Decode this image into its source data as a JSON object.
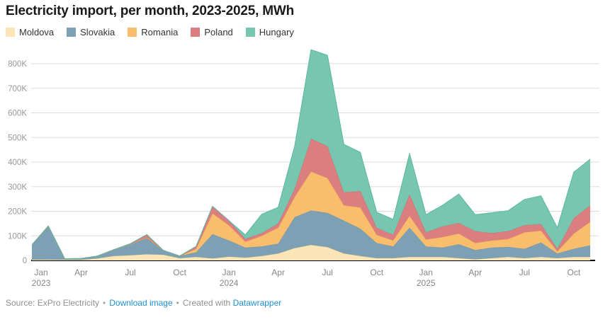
{
  "chart_data": {
    "type": "area",
    "stacked": true,
    "title": "Electricity import, per month, 2023-2025, MWh",
    "xlabel": "",
    "ylabel": "MWh",
    "grid": true,
    "legend_position": "top-left",
    "ylim": [
      0,
      860000
    ],
    "y_ticks": [
      0,
      100000,
      200000,
      300000,
      400000,
      500000,
      600000,
      700000,
      800000
    ],
    "y_tick_labels": [
      "0",
      "100K",
      "200K",
      "300K",
      "400K",
      "500K",
      "600K",
      "700K",
      "800K"
    ],
    "x": [
      "Jan 2023",
      "Feb 2023",
      "Mar 2023",
      "Apr 2023",
      "May 2023",
      "Jun 2023",
      "Jul 2023",
      "Aug 2023",
      "Sep 2023",
      "Oct 2023",
      "Nov 2023",
      "Dec 2023",
      "Jan 2024",
      "Feb 2024",
      "Mar 2024",
      "Apr 2024",
      "May 2024",
      "Jun 2024",
      "Jul 2024",
      "Aug 2024",
      "Sep 2024",
      "Oct 2024",
      "Nov 2024",
      "Dec 2024",
      "Jan 2025",
      "Feb 2025",
      "Mar 2025",
      "Apr 2025",
      "May 2025",
      "Jun 2025",
      "Jul 2025",
      "Aug 2025",
      "Sep 2025",
      "Oct 2025",
      "Nov 2025"
    ],
    "x_ticks": [
      {
        "index": 0,
        "month": "Jan",
        "year": "2023"
      },
      {
        "index": 3,
        "month": "Apr",
        "year": ""
      },
      {
        "index": 6,
        "month": "Jul",
        "year": ""
      },
      {
        "index": 9,
        "month": "Oct",
        "year": ""
      },
      {
        "index": 12,
        "month": "Jan",
        "year": "2024"
      },
      {
        "index": 15,
        "month": "Apr",
        "year": ""
      },
      {
        "index": 18,
        "month": "Jul",
        "year": ""
      },
      {
        "index": 21,
        "month": "Oct",
        "year": ""
      },
      {
        "index": 24,
        "month": "Jan",
        "year": "2025"
      },
      {
        "index": 27,
        "month": "Apr",
        "year": ""
      },
      {
        "index": 30,
        "month": "Jul",
        "year": ""
      },
      {
        "index": 33,
        "month": "Oct",
        "year": ""
      }
    ],
    "series": [
      {
        "name": "Moldova",
        "color": "#FBE5B6",
        "line_color": "#F4D79A",
        "values": [
          3000,
          3000,
          2000,
          2000,
          8000,
          18000,
          21000,
          25000,
          23000,
          9000,
          14000,
          8000,
          15000,
          11000,
          18000,
          28000,
          50000,
          63000,
          54000,
          28000,
          18000,
          9000,
          9000,
          14000,
          14000,
          14000,
          9000,
          4000,
          9000,
          14000,
          9000,
          14000,
          9000,
          14000,
          14000
        ]
      },
      {
        "name": "Slovakia",
        "color": "#7EA0B4",
        "line_color": "#6B93A9",
        "values": [
          60000,
          137000,
          5000,
          6000,
          10000,
          26000,
          45000,
          66000,
          18000,
          9000,
          19000,
          99000,
          66000,
          41000,
          39000,
          40000,
          126000,
          140000,
          139000,
          134000,
          111000,
          62000,
          48000,
          119000,
          43000,
          38000,
          57000,
          38000,
          43000,
          41000,
          38000,
          59000,
          19000,
          33000,
          47000
        ]
      },
      {
        "name": "Romania",
        "color": "#F8BE6E",
        "line_color": "#F2AC52",
        "values": [
          0,
          0,
          0,
          0,
          0,
          0,
          0,
          2000,
          0,
          0,
          14000,
          84000,
          62000,
          24000,
          43000,
          65000,
          82000,
          158000,
          142000,
          62000,
          86000,
          33000,
          24000,
          48000,
          28000,
          43000,
          43000,
          29000,
          29000,
          32000,
          67000,
          48000,
          9000,
          62000,
          96000
        ]
      },
      {
        "name": "Poland",
        "color": "#DA7E80",
        "line_color": "#CE6C70",
        "values": [
          0,
          0,
          0,
          0,
          0,
          0,
          2000,
          12000,
          0,
          0,
          10000,
          29000,
          19000,
          11000,
          11000,
          17000,
          33000,
          134000,
          129000,
          53000,
          67000,
          29000,
          23000,
          87000,
          29000,
          43000,
          43000,
          48000,
          30000,
          32000,
          29000,
          27000,
          10000,
          63000,
          67000
        ]
      },
      {
        "name": "Hungary",
        "color": "#77C6AF",
        "line_color": "#5CB89E",
        "values": [
          0,
          0,
          0,
          0,
          0,
          0,
          0,
          0,
          0,
          0,
          0,
          0,
          0,
          17000,
          77000,
          66000,
          173000,
          362000,
          370000,
          195000,
          158000,
          63000,
          63000,
          167000,
          72000,
          86000,
          118000,
          67000,
          83000,
          83000,
          105000,
          115000,
          86000,
          187000,
          188000
        ]
      }
    ]
  },
  "colors": {
    "grid": "#dddddd",
    "baseline": "#000000",
    "y_axis_text": "#999999",
    "x_axis_text": "#858585",
    "title_text": "#1a1a1a",
    "footer_text": "#8f8f8f",
    "link_blue": "#1e8fd0"
  },
  "footer": {
    "source": "Source: ExPro Electricity",
    "separator": "•",
    "download_label": "Download image",
    "created_label": "Created with",
    "brand_label": "Datawrapper"
  }
}
